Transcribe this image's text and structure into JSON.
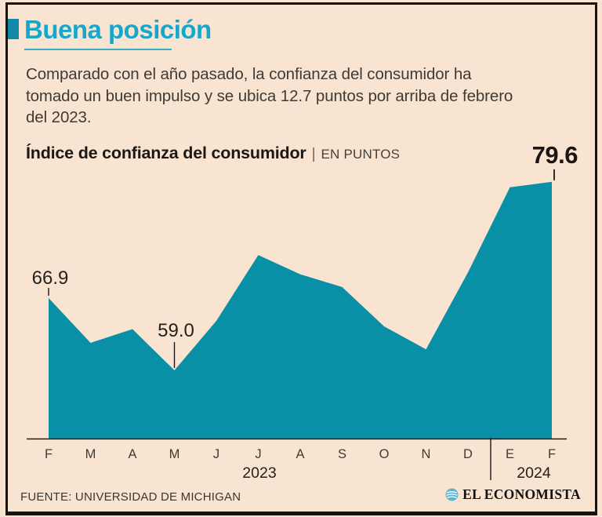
{
  "header": {
    "title": "Buena posición",
    "description": "Comparado con el año pasado, la confianza del consumidor ha\ntomado un buen impulso y se ubica 12.7 puntos por arriba de febrero\ndel 2023."
  },
  "chart_header": {
    "title": "Índice de confianza del consumidor",
    "separator": "|",
    "unit_label": "EN PUNTOS",
    "latest_value": "79.6"
  },
  "chart_data": {
    "type": "area",
    "title": "Índice de confianza del consumidor",
    "ylabel": "EN PUNTOS",
    "categories": [
      "F",
      "M",
      "A",
      "M",
      "J",
      "J",
      "A",
      "S",
      "O",
      "N",
      "D",
      "E",
      "F"
    ],
    "values": [
      66.9,
      62.0,
      63.5,
      59.0,
      64.4,
      71.6,
      69.5,
      68.1,
      63.8,
      61.3,
      69.7,
      79.0,
      79.6
    ],
    "year_groups": [
      {
        "label": "2023",
        "start_index": 0,
        "end_index": 10
      },
      {
        "label": "2024",
        "start_index": 11,
        "end_index": 12
      }
    ],
    "annotations": [
      {
        "index": 0,
        "label": "66.9",
        "leader": "short"
      },
      {
        "index": 3,
        "label": "59.0",
        "leader": "long"
      },
      {
        "index": 12,
        "label": "79.6",
        "style": "headline"
      }
    ],
    "area_color": "#0990a6",
    "axis_color": "#1d1a17",
    "ylim_visible_baseline": 51.5,
    "grid": false,
    "legend": false
  },
  "footer": {
    "source": "FUENTE: UNIVERSIDAD DE MICHIGAN",
    "brand": "EL ECONOMISTA"
  },
  "colors": {
    "background": "#f9e4d1",
    "accent_cyan": "#17a7ca",
    "marker_teal": "#1089a8",
    "area_teal": "#0990a6",
    "frame_black": "#171310"
  }
}
